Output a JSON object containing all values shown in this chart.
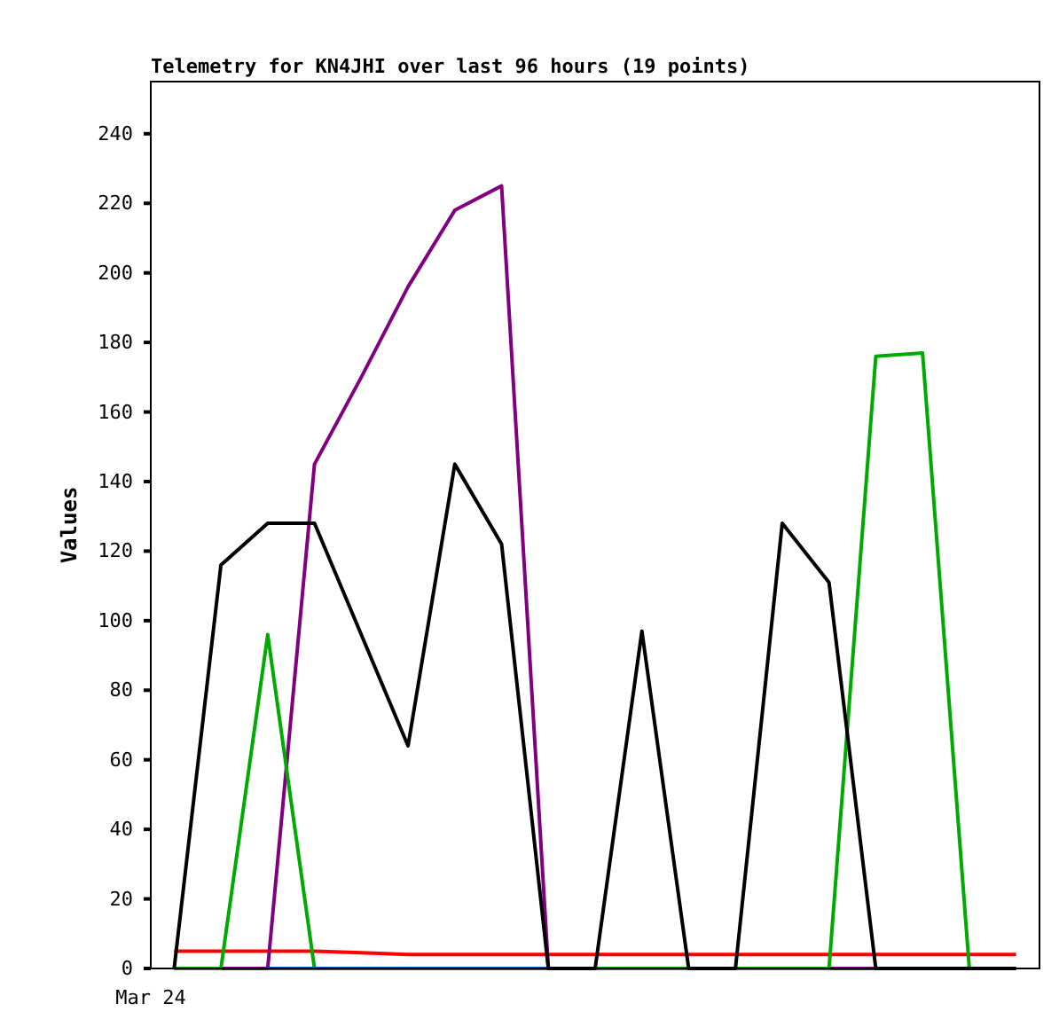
{
  "chart_data": {
    "type": "line",
    "title": "Telemetry for KN4JHI over last 96 hours (19 points)",
    "ylabel": "Values",
    "annotations": [
      "Mar 24"
    ],
    "categories": [
      null,
      null,
      null,
      null,
      null,
      null,
      null,
      null,
      null,
      null,
      null,
      null,
      null,
      null,
      null,
      null,
      null,
      null,
      null
    ],
    "ylim": [
      0,
      255
    ],
    "yticks": [
      0,
      20,
      40,
      60,
      80,
      100,
      120,
      140,
      160,
      180,
      200,
      220,
      240
    ],
    "marker": "none",
    "line_style": "solid",
    "series": [
      {
        "color": "#ff0000",
        "values": [
          5,
          5,
          5,
          5,
          4.5,
          4,
          4,
          4,
          4,
          4,
          4,
          4,
          4,
          4,
          4,
          4,
          4,
          4,
          4
        ]
      },
      {
        "color": "#800080",
        "values": [
          0,
          0,
          0,
          145,
          170,
          196,
          218,
          225,
          0,
          null,
          null,
          null,
          0,
          0,
          0,
          0,
          null,
          null,
          null
        ]
      },
      {
        "color": "#00aa00",
        "values": [
          0,
          0,
          96,
          0,
          0,
          0,
          0,
          0,
          0,
          0,
          0,
          0,
          0,
          0,
          0,
          176,
          177,
          0,
          0
        ]
      },
      {
        "color": "#0066cc",
        "values": [
          null,
          null,
          0,
          0,
          0,
          0,
          0,
          0,
          0,
          null,
          null,
          null,
          null,
          null,
          null,
          null,
          null,
          null,
          null
        ]
      },
      {
        "color": "#000000",
        "values": [
          0,
          116,
          128,
          128,
          96,
          64,
          145,
          122,
          0,
          0,
          97,
          0,
          0,
          128,
          111,
          0,
          0,
          0,
          0
        ]
      }
    ]
  }
}
